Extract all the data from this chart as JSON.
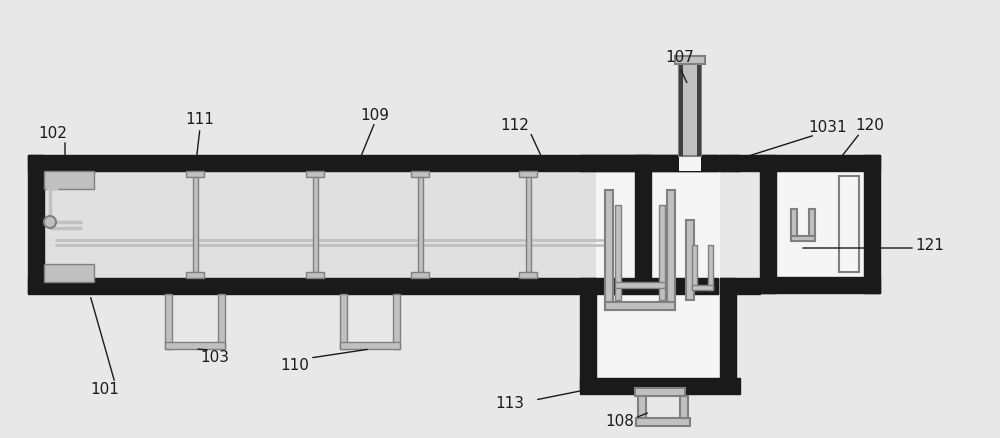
{
  "bg_color": "#e8e8e8",
  "black": "#1a1a1a",
  "dark_gray": "#404040",
  "gray": "#808080",
  "light_gray": "#c0c0c0",
  "white": "#f5f5f5",
  "off_white": "#e0e0e0"
}
